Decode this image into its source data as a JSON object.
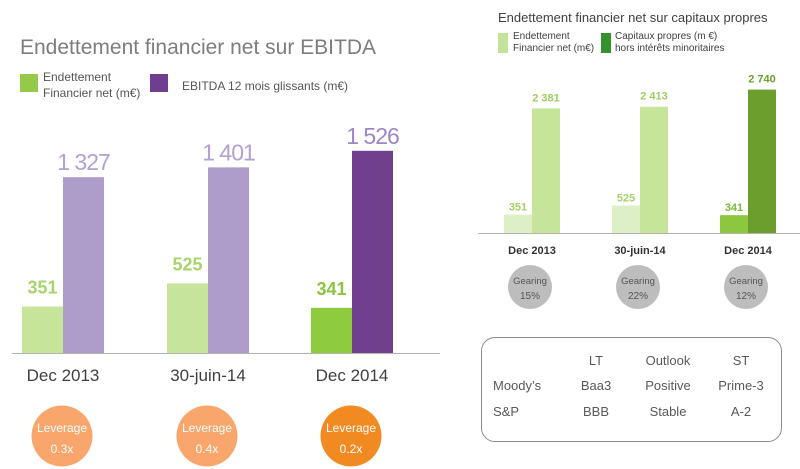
{
  "chart_data": [
    {
      "type": "bar",
      "title": "Endettement financier net sur EBITDA",
      "categories": [
        "Dec 2013",
        "30-juin-14",
        "Dec 2014"
      ],
      "series": [
        {
          "name": "Endettement Financier net (m€)",
          "values": [
            351,
            525,
            341
          ],
          "labels": [
            "351",
            "525",
            "341"
          ],
          "legend_color": "#95c94a",
          "bar_colors": [
            "#c6e59b",
            "#c6e59b",
            "#8ecb3e"
          ],
          "label_colors": [
            "#a8d46c",
            "#a8d46c",
            "#8ac53e"
          ]
        },
        {
          "name": "EBITDA 12 mois glissants (m€)",
          "values": [
            1327,
            1401,
            1526
          ],
          "labels": [
            "1 327",
            "1 401",
            "1 526"
          ],
          "legend_color": "#6f3e90",
          "bar_colors": [
            "#ae9ccb",
            "#ae9ccb",
            "#70408e"
          ],
          "label_colors": [
            "#b2a1d1",
            "#b2a1d1",
            "#9d86c8"
          ]
        }
      ],
      "ylim": [
        0,
        2000
      ],
      "grid": false,
      "legend": "top-left",
      "annotations": [
        {
          "label": "Leverage",
          "value": "0.3x",
          "color": "#f9a66c"
        },
        {
          "label": "Leverage",
          "value": "0.4x",
          "color": "#f9a66c"
        },
        {
          "label": "Leverage",
          "value": "0.2x",
          "color": "#f28a22"
        }
      ]
    },
    {
      "type": "bar",
      "title": "Endettement financier net sur capitaux propres",
      "categories": [
        "Dec 2013",
        "30-juin-14",
        "Dec 2014"
      ],
      "series": [
        {
          "name": "Endettement Financier net (m€)",
          "values": [
            351,
            525,
            341
          ],
          "labels": [
            "351",
            "525",
            "341"
          ],
          "legend_color": "#c3e39a",
          "bar_colors": [
            "#dcefc7",
            "#dcefc7",
            "#8dc63f"
          ],
          "label_colors": [
            "#a5cf68",
            "#a5cf68",
            "#7db83a"
          ]
        },
        {
          "name": "Capitaux propres (m €) hors intérêts minoritaires",
          "values": [
            2381,
            2413,
            2740
          ],
          "labels": [
            "2 381",
            "2 413",
            "2 740"
          ],
          "legend_color": "#34912c",
          "bar_colors": [
            "#c6e59b",
            "#c6e59b",
            "#6b9e2c"
          ],
          "label_colors": [
            "#9fcc5f",
            "#9fcc5f",
            "#6b9e2c"
          ]
        }
      ],
      "ylim": [
        0,
        3000
      ],
      "grid": false,
      "legend": "top-left",
      "annotations": [
        {
          "label": "Gearing",
          "value": "15%",
          "color": "#bdbdbd"
        },
        {
          "label": "Gearing",
          "value": "22%",
          "color": "#bdbdbd"
        },
        {
          "label": "Gearing",
          "value": "12%",
          "color": "#bdbdbd"
        }
      ]
    }
  ],
  "ratings_table": {
    "columns": [
      "LT",
      "Outlook",
      "ST"
    ],
    "rows": [
      {
        "agency": "Moody’s",
        "values": [
          "Baa3",
          "Positive",
          "Prime-3"
        ]
      },
      {
        "agency": "S&P",
        "values": [
          "BBB",
          "Stable",
          "A-2"
        ]
      }
    ]
  }
}
